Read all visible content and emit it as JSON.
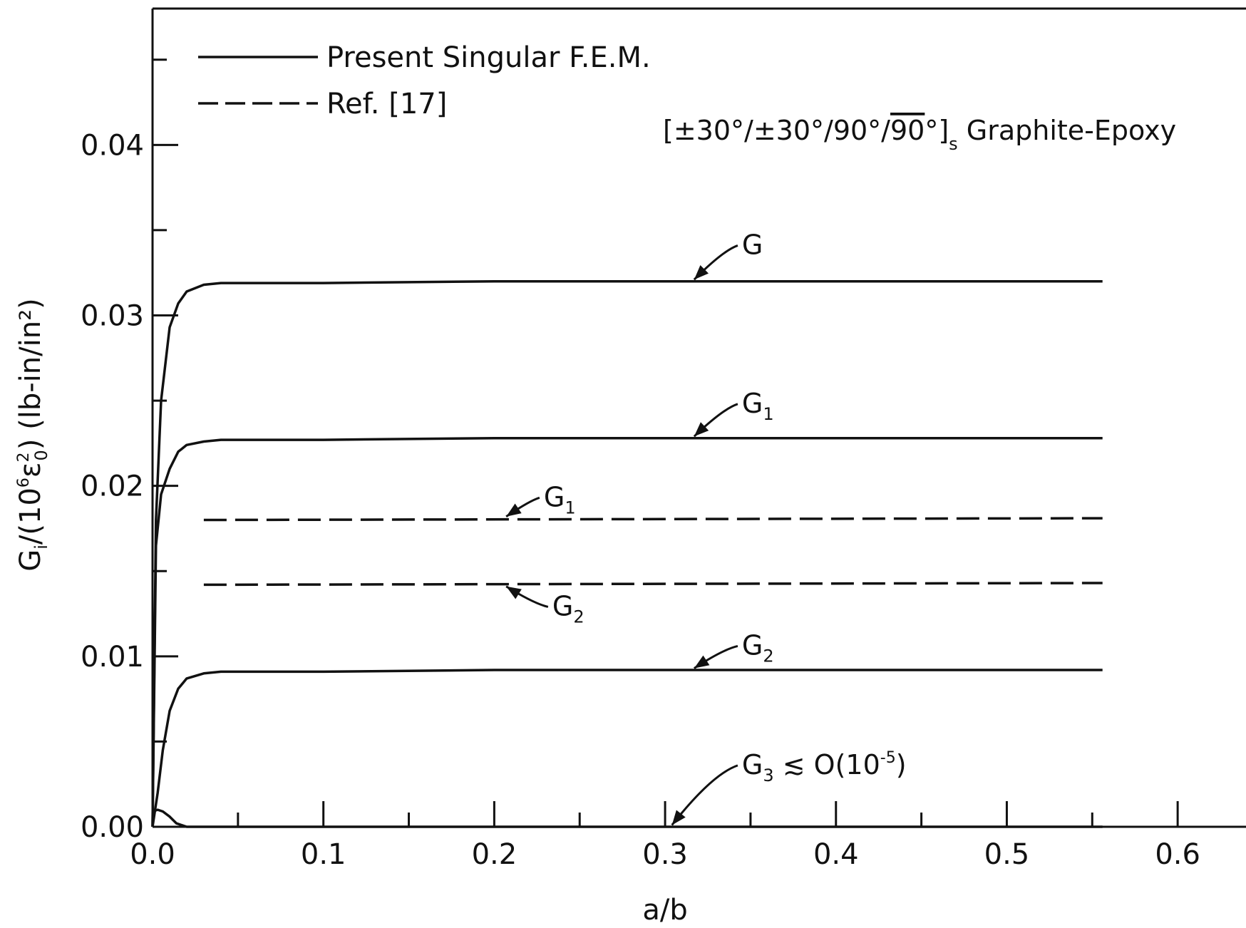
{
  "chart_data": {
    "type": "line",
    "title": "",
    "xlabel": "a/b",
    "ylabel_main": "G",
    "ylabel_sub": "i",
    "ylabel_mid": "/(10",
    "ylabel_exp": "6",
    "ylabel_eps": "ε",
    "ylabel_eps_sub": "0",
    "ylabel_eps_sup": "2",
    "ylabel_tail": ")",
    "ylabel_units": "(lb-in/in²)",
    "xlim": [
      0.0,
      0.64
    ],
    "ylim": [
      0.0,
      0.048
    ],
    "x_ticks_major": [
      {
        "v": 0.0,
        "label": "0.0"
      },
      {
        "v": 0.1,
        "label": "0.1"
      },
      {
        "v": 0.2,
        "label": "0.2"
      },
      {
        "v": 0.3,
        "label": "0.3"
      },
      {
        "v": 0.4,
        "label": "0.4"
      },
      {
        "v": 0.5,
        "label": "0.5"
      },
      {
        "v": 0.6,
        "label": "0.6"
      }
    ],
    "x_ticks_minor": [
      0.05,
      0.15,
      0.25,
      0.35,
      0.45,
      0.55
    ],
    "y_ticks_major": [
      {
        "v": 0.0,
        "label": "0.00"
      },
      {
        "v": 0.01,
        "label": "0.01"
      },
      {
        "v": 0.02,
        "label": "0.02"
      },
      {
        "v": 0.03,
        "label": "0.03"
      },
      {
        "v": 0.04,
        "label": "0.04"
      }
    ],
    "y_ticks_minor": [
      0.005,
      0.015,
      0.025,
      0.035,
      0.045
    ],
    "legend": {
      "placement": "top-left",
      "entries": [
        {
          "label": "Present Singular F.E.M.",
          "style": "solid"
        },
        {
          "label": "Ref. [17]",
          "style": "dashed"
        }
      ]
    },
    "laminate_label": {
      "text": "±30°/±30°/90°/",
      "overlined": "90",
      "degree": "°",
      "subscript": "s",
      "suffix": "Graphite-Epoxy"
    },
    "series": [
      {
        "name": "G",
        "style": "solid",
        "x": [
          0.0,
          0.002,
          0.005,
          0.01,
          0.015,
          0.02,
          0.03,
          0.04,
          0.05,
          0.1,
          0.2,
          0.3,
          0.4,
          0.5,
          0.556
        ],
        "y": [
          0.0,
          0.018,
          0.025,
          0.0293,
          0.0307,
          0.0314,
          0.0318,
          0.0319,
          0.0319,
          0.0319,
          0.032,
          0.032,
          0.032,
          0.032,
          0.032
        ]
      },
      {
        "name": "G1",
        "style": "solid",
        "x": [
          0.0,
          0.002,
          0.005,
          0.01,
          0.015,
          0.02,
          0.03,
          0.04,
          0.05,
          0.1,
          0.2,
          0.3,
          0.4,
          0.5,
          0.556
        ],
        "y": [
          0.0,
          0.0165,
          0.0195,
          0.021,
          0.022,
          0.0224,
          0.0226,
          0.0227,
          0.0227,
          0.0227,
          0.0228,
          0.0228,
          0.0228,
          0.0228,
          0.0228
        ]
      },
      {
        "name": "G2",
        "style": "solid",
        "x": [
          0.0,
          0.003,
          0.006,
          0.01,
          0.015,
          0.02,
          0.03,
          0.04,
          0.05,
          0.1,
          0.2,
          0.3,
          0.4,
          0.5,
          0.556
        ],
        "y": [
          0.0,
          0.002,
          0.0045,
          0.0068,
          0.0081,
          0.0087,
          0.009,
          0.0091,
          0.0091,
          0.0091,
          0.0092,
          0.0092,
          0.0092,
          0.0092,
          0.0092
        ]
      },
      {
        "name": "G3",
        "style": "solid",
        "x": [
          0.0,
          0.003,
          0.006,
          0.01,
          0.014,
          0.02,
          0.03,
          0.556
        ],
        "y": [
          0.0009,
          0.001,
          0.0009,
          0.0006,
          0.0002,
          0.0,
          0.0,
          0.0
        ]
      },
      {
        "name": "G1 Ref. [17]",
        "style": "dashed",
        "x": [
          0.03,
          0.556
        ],
        "y": [
          0.018,
          0.0181
        ]
      },
      {
        "name": "G2 Ref. [17]",
        "style": "dashed",
        "x": [
          0.03,
          0.556
        ],
        "y": [
          0.0142,
          0.0143
        ]
      }
    ],
    "annotations": [
      {
        "id": "G",
        "base": "G",
        "sub": "",
        "tail": "",
        "sup": "",
        "text_x": 0.345,
        "text_y": 0.0336,
        "arrow_to_x": 0.317,
        "arrow_to_y": 0.0321
      },
      {
        "id": "G1",
        "base": "G",
        "sub": "1",
        "tail": "",
        "sup": "",
        "text_x": 0.345,
        "text_y": 0.0243,
        "arrow_to_x": 0.317,
        "arrow_to_y": 0.0229
      },
      {
        "id": "G1ref",
        "base": "G",
        "sub": "1",
        "tail": "",
        "sup": "",
        "text_x": 0.229,
        "text_y": 0.0188,
        "arrow_to_x": 0.207,
        "arrow_to_y": 0.0182
      },
      {
        "id": "G2ref",
        "base": "G",
        "sub": "2",
        "tail": "",
        "sup": "",
        "text_x": 0.234,
        "text_y": 0.0124,
        "arrow_to_x": 0.207,
        "arrow_to_y": 0.0141
      },
      {
        "id": "G2",
        "base": "G",
        "sub": "2",
        "tail": "",
        "sup": "",
        "text_x": 0.345,
        "text_y": 0.0101,
        "arrow_to_x": 0.317,
        "arrow_to_y": 0.0093
      },
      {
        "id": "G3",
        "base": "G",
        "sub": "3",
        "tail": "≲ O(10",
        "sup": "-5",
        "tail2": ")",
        "text_x": 0.345,
        "text_y": 0.0031,
        "arrow_to_x": 0.304,
        "arrow_to_y": 0.0001
      }
    ]
  }
}
